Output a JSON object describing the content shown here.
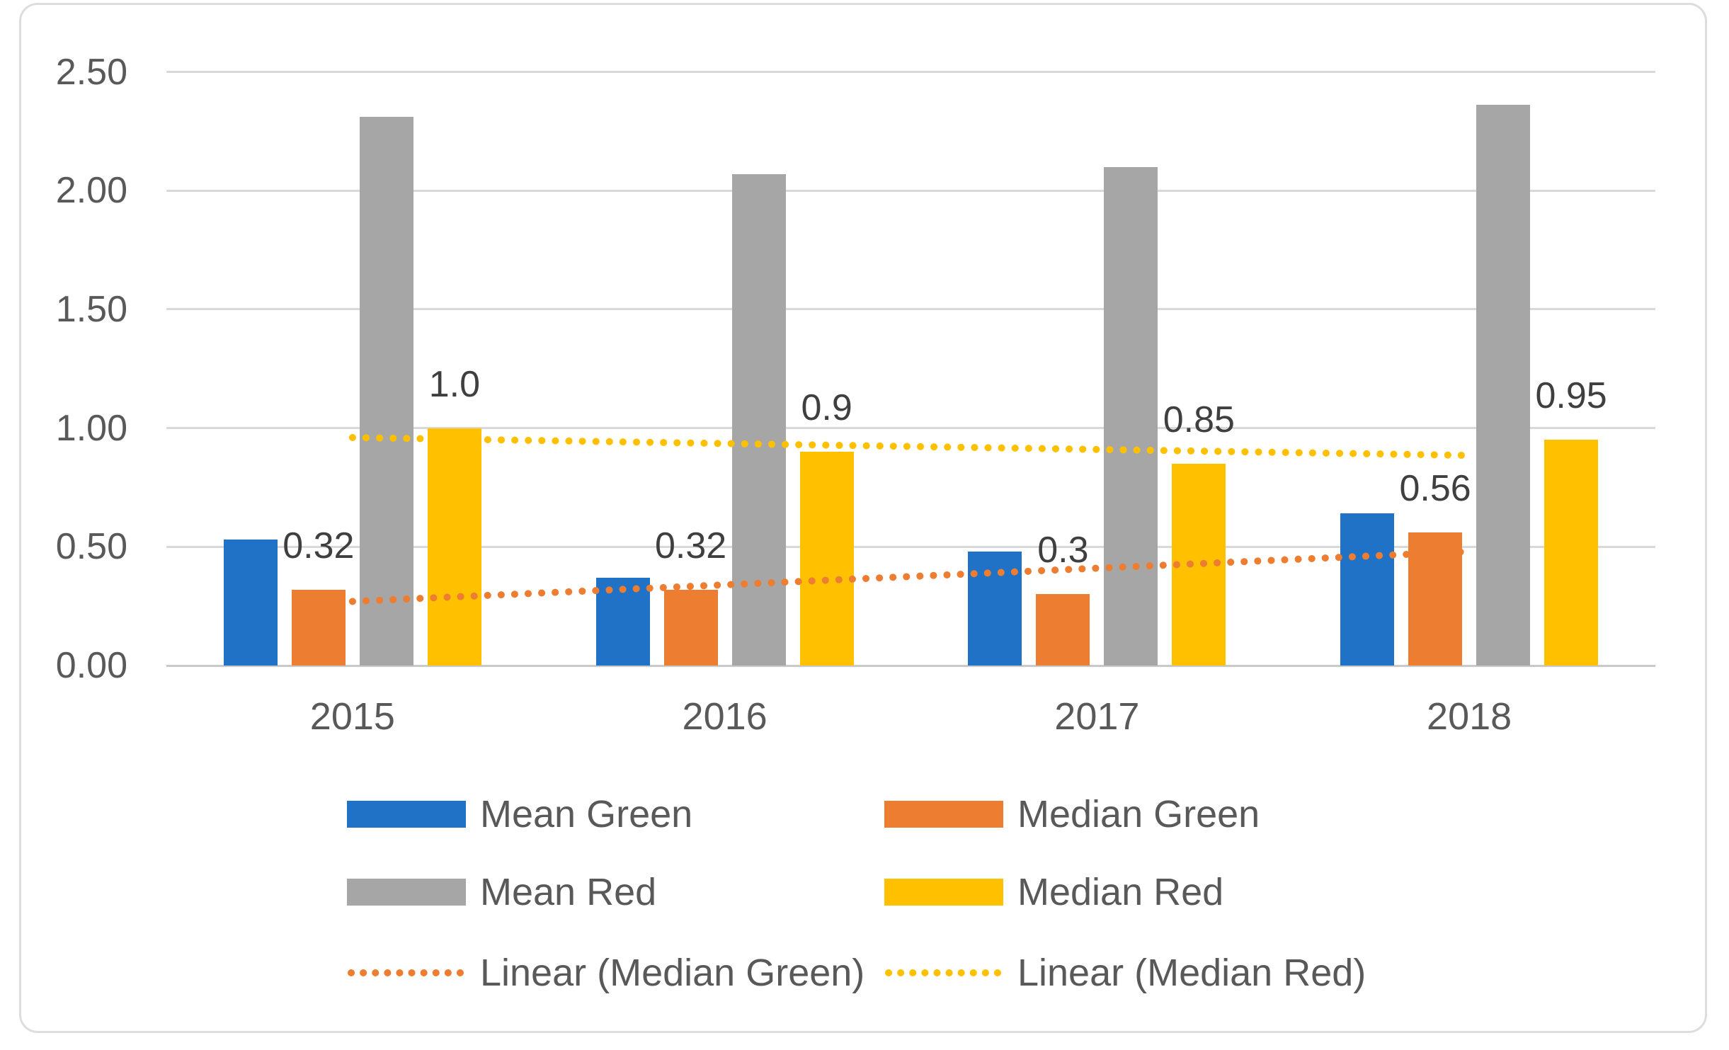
{
  "chart_data": {
    "type": "bar",
    "title": "",
    "xlabel": "",
    "ylabel": "",
    "categories": [
      "2015",
      "2016",
      "2017",
      "2018"
    ],
    "series": [
      {
        "name": "Mean Green",
        "color": "#1F72C6",
        "values": [
          0.53,
          0.37,
          0.48,
          0.64
        ],
        "data_labels": null
      },
      {
        "name": "Median Green",
        "color": "#ED7D31",
        "values": [
          0.32,
          0.32,
          0.3,
          0.56
        ],
        "data_labels": [
          "0.32",
          "0.32",
          "0.3",
          "0.56"
        ]
      },
      {
        "name": "Mean Red",
        "color": "#A6A6A6",
        "values": [
          2.31,
          2.07,
          2.1,
          2.36
        ],
        "data_labels": null
      },
      {
        "name": "Median Red",
        "color": "#FFC000",
        "values": [
          1.0,
          0.9,
          0.85,
          0.95
        ],
        "data_labels": [
          "1.0",
          "0.9",
          "0.85",
          "0.95"
        ]
      }
    ],
    "trendlines": [
      {
        "name": "Linear (Median Green)",
        "color": "#ED7D31",
        "style": "dotted",
        "start_value": 0.27,
        "end_value": 0.48
      },
      {
        "name": "Linear (Median Red)",
        "color": "#FFC000",
        "style": "dotted",
        "start_value": 0.96,
        "end_value": 0.885
      }
    ],
    "y_axis": {
      "min": 0.0,
      "max": 2.5,
      "step": 0.5,
      "tick_labels": [
        "0.00",
        "0.50",
        "1.00",
        "1.50",
        "2.00",
        "2.50"
      ]
    },
    "grid": true,
    "legend": {
      "position": "bottom",
      "rows": [
        [
          {
            "label": "Mean Green",
            "marker": "bar",
            "color": "#1F72C6"
          },
          {
            "label": "Median Green",
            "marker": "bar",
            "color": "#ED7D31"
          }
        ],
        [
          {
            "label": "Mean Red",
            "marker": "bar",
            "color": "#A6A6A6"
          },
          {
            "label": "Median Red",
            "marker": "bar",
            "color": "#FFC000"
          }
        ],
        [
          {
            "label": "Linear (Median Green)",
            "marker": "dotted",
            "color": "#ED7D31"
          },
          {
            "label": "Linear (Median Red)",
            "marker": "dotted",
            "color": "#FFC000"
          }
        ]
      ]
    },
    "styles": {
      "gridline_color": "#D9D9D9",
      "axis_line_color": "#C9C9C9",
      "tick_text_color": "#595959",
      "data_label_color": "#3F3F3F",
      "legend_text_color": "#595959",
      "chart_border_color": "#DDDDDD",
      "background": "#FFFFFF"
    }
  }
}
